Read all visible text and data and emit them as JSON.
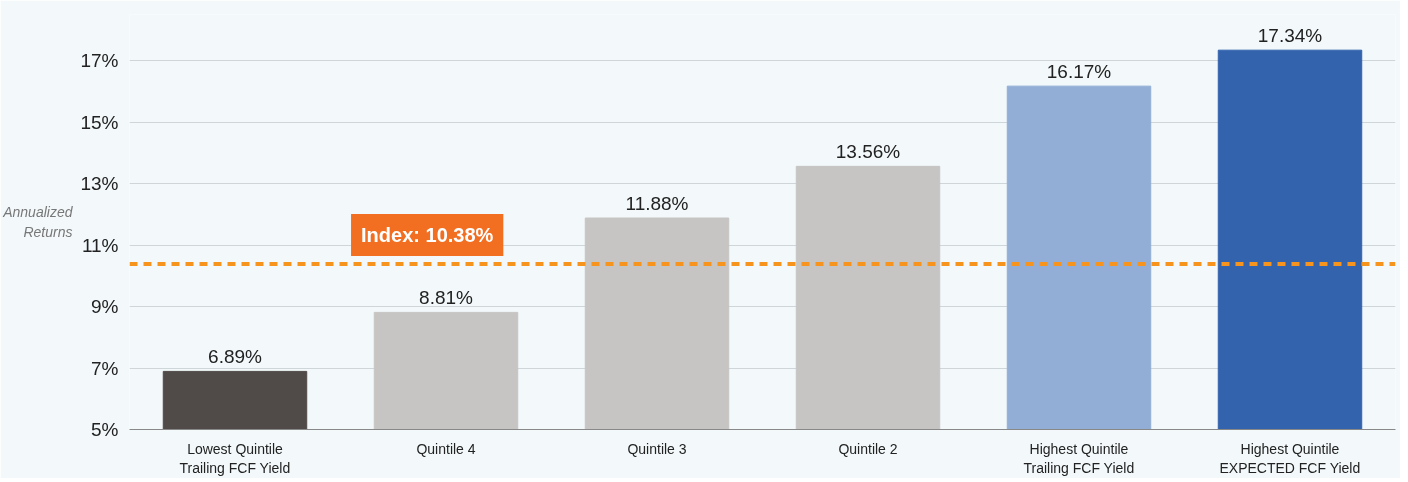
{
  "chart_data": {
    "type": "bar",
    "ylabel": "Annualized\nReturns",
    "categories": [
      "Lowest Quintile\nTrailing FCF Yield",
      "Quintile 4",
      "Quintile 3",
      "Quintile 2",
      "Highest Quintile\nTrailing FCF Yield",
      "Highest Quintile\nEXPECTED FCF Yield"
    ],
    "values": [
      6.89,
      8.81,
      11.88,
      13.56,
      16.17,
      17.34
    ],
    "colors": [
      "#504a48",
      "#c6c5c3",
      "#c6c5c3",
      "#c6c5c3",
      "#92aed6",
      "#3363ad"
    ],
    "value_labels": [
      "6.89%",
      "8.81%",
      "11.88%",
      "13.56%",
      "16.17%",
      "17.34%"
    ],
    "ylim": [
      5,
      18.5
    ],
    "yticks": [
      {
        "value": 5,
        "label": "5%"
      },
      {
        "value": 7,
        "label": "7%"
      },
      {
        "value": 9,
        "label": "9%"
      },
      {
        "value": 11,
        "label": "11%"
      },
      {
        "value": 13,
        "label": "13%"
      },
      {
        "value": 15,
        "label": "15%"
      },
      {
        "value": 17,
        "label": "17%"
      }
    ],
    "ref_lines": [
      {
        "axis": "y",
        "value": 10.38,
        "label": "Index: 10.38%",
        "color": "#f7941d",
        "line_style": "dashed"
      }
    ],
    "grid": "y"
  }
}
